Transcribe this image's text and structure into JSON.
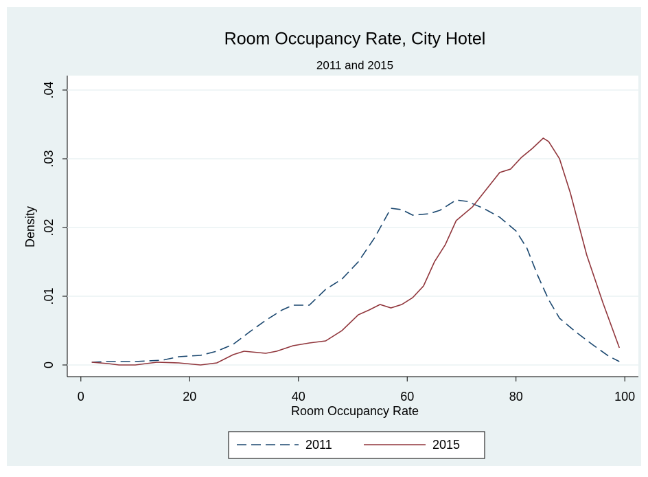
{
  "chart_data": {
    "type": "line",
    "title": "Room Occupancy Rate, City Hotel",
    "subtitle": "2011 and 2015",
    "x_label": "Room Occupancy Rate",
    "y_label": "Density",
    "xlim": [
      -2.5,
      102.5
    ],
    "ylim": [
      -0.0017,
      0.0421
    ],
    "xticks": [
      0,
      20,
      40,
      60,
      80,
      100
    ],
    "yticks": [
      0,
      {
        "value": 0.01,
        "label": ".01"
      },
      {
        "value": 0.02,
        "label": ".02"
      },
      {
        "value": 0.03,
        "label": ".03"
      },
      {
        "value": 0.04,
        "label": ".04"
      }
    ],
    "grid": true,
    "legend": "bottom",
    "series": [
      {
        "name": "2011",
        "color": "#1a476f",
        "dash": true,
        "x": [
          2,
          5,
          10,
          15,
          18,
          22,
          25,
          28,
          31,
          34,
          37,
          39,
          42,
          45,
          48,
          51,
          54,
          57,
          59,
          61,
          64,
          66,
          69,
          71,
          74,
          77,
          80,
          82,
          84,
          86,
          88,
          91,
          94,
          97,
          99
        ],
        "values": [
          0.0004,
          0.0005,
          0.0005,
          0.0007,
          0.0012,
          0.0014,
          0.002,
          0.003,
          0.0048,
          0.0065,
          0.008,
          0.0087,
          0.0087,
          0.011,
          0.0125,
          0.015,
          0.0185,
          0.0228,
          0.0226,
          0.0218,
          0.022,
          0.0225,
          0.024,
          0.0238,
          0.0228,
          0.0215,
          0.0195,
          0.017,
          0.013,
          0.0095,
          0.0068,
          0.0048,
          0.003,
          0.0013,
          0.0005
        ]
      },
      {
        "name": "2015",
        "color": "#90353b",
        "dash": false,
        "x": [
          2,
          5,
          7,
          10,
          14,
          18,
          22,
          25,
          28,
          30,
          34,
          36,
          39,
          42,
          45,
          48,
          51,
          53,
          55,
          57,
          59,
          61,
          63,
          65,
          67,
          69,
          72,
          75,
          77,
          79,
          81,
          83,
          85,
          86,
          88,
          90,
          93,
          96,
          99
        ],
        "values": [
          0.0004,
          0.0002,
          0,
          0,
          0.0004,
          0.0003,
          0,
          0.0003,
          0.0015,
          0.002,
          0.0017,
          0.002,
          0.0028,
          0.0032,
          0.0035,
          0.005,
          0.0073,
          0.008,
          0.0088,
          0.0083,
          0.0088,
          0.0098,
          0.0115,
          0.015,
          0.0175,
          0.021,
          0.023,
          0.026,
          0.028,
          0.0285,
          0.0302,
          0.0315,
          0.033,
          0.0325,
          0.03,
          0.025,
          0.016,
          0.009,
          0.0025
        ]
      }
    ]
  }
}
